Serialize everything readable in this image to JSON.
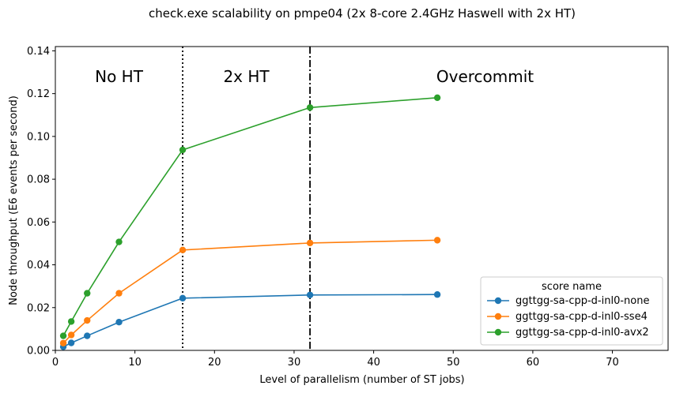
{
  "chart_data": {
    "type": "line",
    "title": "check.exe scalability on pmpe04 (2x 8-core 2.4GHz Haswell with 2x HT)",
    "xlabel": "Level of parallelism (number of ST jobs)",
    "ylabel": "Node throughput (E6 events per second)",
    "xlim": [
      0,
      77
    ],
    "ylim": [
      0,
      0.142
    ],
    "xticks": [
      0,
      10,
      20,
      30,
      40,
      50,
      60,
      70
    ],
    "yticks": [
      0.0,
      0.02,
      0.04,
      0.06,
      0.08,
      0.1,
      0.12,
      0.14
    ],
    "xtick_labels": [
      "0",
      "10",
      "20",
      "30",
      "40",
      "50",
      "60",
      "70"
    ],
    "ytick_labels": [
      "0.00",
      "0.02",
      "0.04",
      "0.06",
      "0.08",
      "0.10",
      "0.12",
      "0.14"
    ],
    "grid": false,
    "legend": {
      "title": "score name",
      "position": "lower-right"
    },
    "x": [
      1,
      2,
      4,
      8,
      16,
      32,
      48
    ],
    "series": [
      {
        "name": "ggttgg-sa-cpp-d-inl0-none",
        "color": "#1f77b4",
        "values": [
          0.0017,
          0.0035,
          0.0068,
          0.0132,
          0.0244,
          0.0259,
          0.0261
        ]
      },
      {
        "name": "ggttgg-sa-cpp-d-inl0-sse4",
        "color": "#ff7f0e",
        "values": [
          0.0034,
          0.0072,
          0.014,
          0.0267,
          0.0469,
          0.0502,
          0.0515
        ]
      },
      {
        "name": "ggttgg-sa-cpp-d-inl0-avx2",
        "color": "#2ca02c",
        "values": [
          0.0068,
          0.0135,
          0.0267,
          0.0507,
          0.0937,
          0.1135,
          0.1181
        ]
      }
    ],
    "vlines": [
      {
        "x": 16,
        "style": "dotted"
      },
      {
        "x": 32,
        "style": "dashdot"
      }
    ],
    "annotations": [
      {
        "text": "No HT",
        "x": 8,
        "y": 0.128
      },
      {
        "text": "2x HT",
        "x": 24,
        "y": 0.128
      },
      {
        "text": "Overcommit",
        "x": 54,
        "y": 0.128
      }
    ]
  }
}
